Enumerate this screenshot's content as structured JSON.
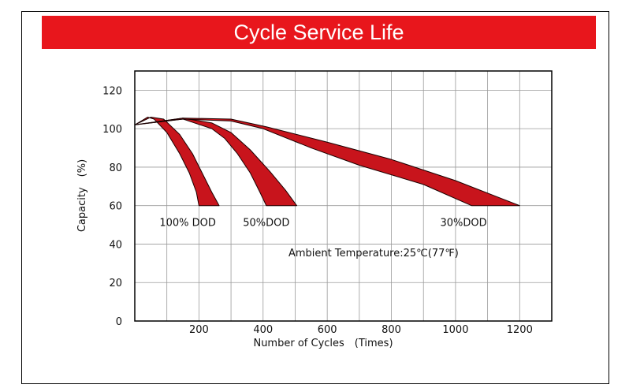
{
  "title": "Cycle Service Life",
  "colors": {
    "title_bg": "#e8161c",
    "band_fill": "#c8141c",
    "band_stroke": "#1a0000",
    "grid": "#9a9a9a"
  },
  "chart_data": {
    "type": "area",
    "title": "Cycle Service Life",
    "xlabel": "Number of Cycles　(Times)",
    "ylabel": "Capacity　(%)",
    "xlim": [
      0,
      1300
    ],
    "ylim": [
      0,
      130
    ],
    "xticks": [
      200,
      400,
      600,
      800,
      1000,
      1200
    ],
    "yticks": [
      0,
      20,
      40,
      60,
      80,
      100,
      120
    ],
    "grid": true,
    "annotation": "Ambient Temperature:25℃(77℉)",
    "series": [
      {
        "label": "100% DOD",
        "upper": [
          [
            0,
            102
          ],
          [
            50,
            106
          ],
          [
            90,
            105
          ],
          [
            140,
            97
          ],
          [
            180,
            87
          ],
          [
            210,
            77
          ],
          [
            240,
            67
          ],
          [
            263,
            60
          ]
        ],
        "lower": [
          [
            0,
            102
          ],
          [
            40,
            106
          ],
          [
            60,
            105
          ],
          [
            100,
            98
          ],
          [
            140,
            87
          ],
          [
            170,
            77
          ],
          [
            192,
            67
          ],
          [
            200,
            60
          ]
        ]
      },
      {
        "label": "50%DOD",
        "upper": [
          [
            0,
            102
          ],
          [
            150,
            105.5
          ],
          [
            240,
            103
          ],
          [
            300,
            98
          ],
          [
            360,
            89
          ],
          [
            420,
            78
          ],
          [
            470,
            68
          ],
          [
            505,
            60
          ]
        ],
        "lower": [
          [
            0,
            102
          ],
          [
            150,
            105
          ],
          [
            240,
            100
          ],
          [
            280,
            95
          ],
          [
            320,
            87
          ],
          [
            360,
            77
          ],
          [
            390,
            67
          ],
          [
            410,
            60
          ]
        ]
      },
      {
        "label": "30%DOD",
        "upper": [
          [
            0,
            102
          ],
          [
            150,
            105.5
          ],
          [
            300,
            105
          ],
          [
            410,
            101
          ],
          [
            600,
            93
          ],
          [
            800,
            84
          ],
          [
            1000,
            73
          ],
          [
            1200,
            60
          ]
        ],
        "lower": [
          [
            0,
            102
          ],
          [
            150,
            105
          ],
          [
            300,
            104
          ],
          [
            400,
            100
          ],
          [
            550,
            90
          ],
          [
            700,
            81
          ],
          [
            900,
            71
          ],
          [
            1050,
            60
          ]
        ]
      }
    ]
  }
}
